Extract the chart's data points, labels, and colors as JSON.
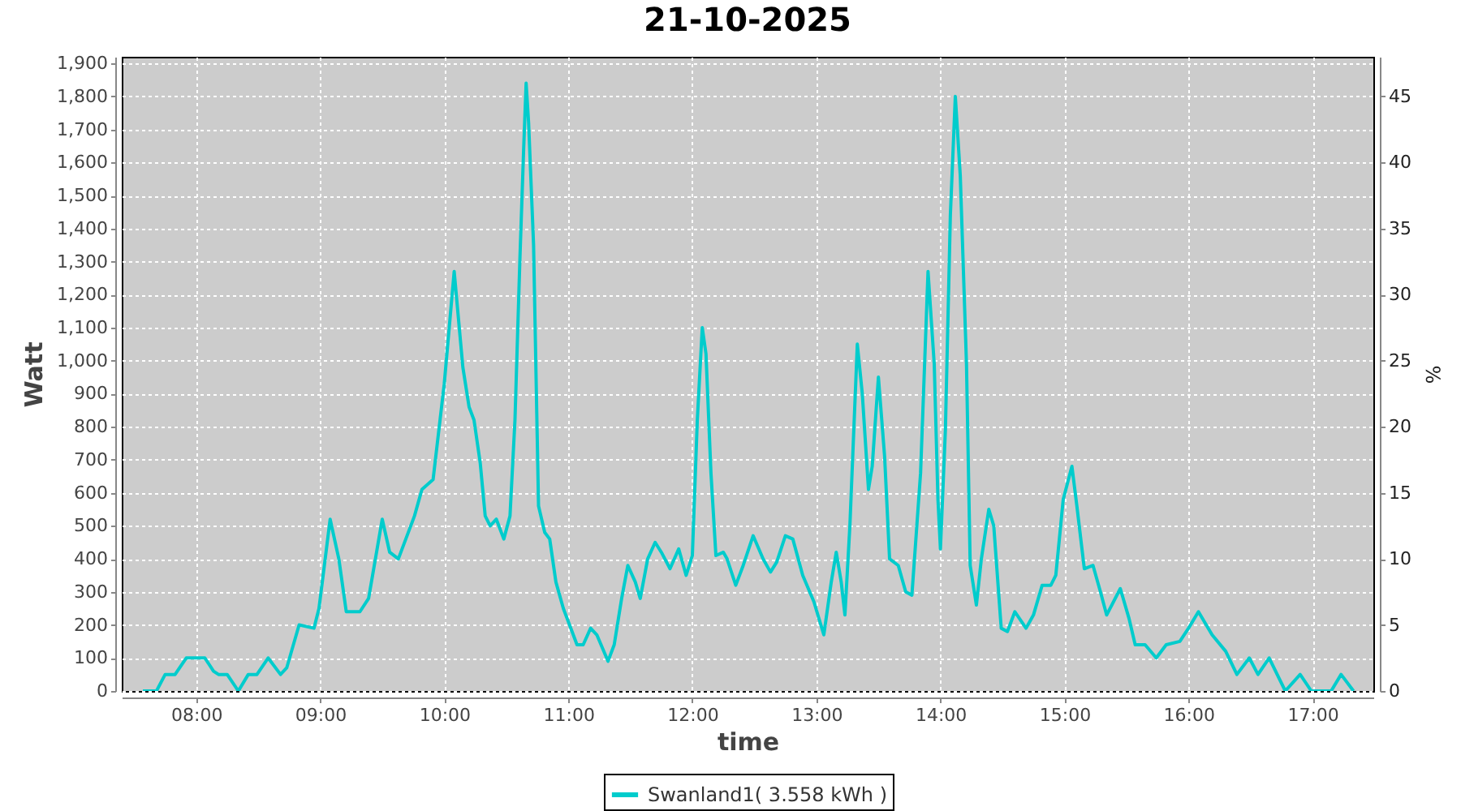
{
  "chart_data": {
    "type": "line",
    "title": "21-10-2025",
    "xlabel": "time",
    "ylabel": "Watt",
    "y2label": "%",
    "x": [
      7.57,
      7.68,
      7.75,
      7.83,
      7.92,
      8.07,
      8.14,
      8.18,
      8.25,
      8.34,
      8.42,
      8.49,
      8.58,
      8.68,
      8.73,
      8.83,
      8.95,
      8.99,
      9.08,
      9.15,
      9.21,
      9.32,
      9.39,
      9.5,
      9.56,
      9.63,
      9.76,
      9.82,
      9.91,
      10.0,
      10.08,
      10.15,
      10.2,
      10.24,
      10.29,
      10.33,
      10.37,
      10.42,
      10.48,
      10.53,
      10.57,
      10.61,
      10.64,
      10.66,
      10.68,
      10.72,
      10.76,
      10.81,
      10.85,
      10.9,
      10.96,
      11.01,
      11.07,
      11.12,
      11.18,
      11.23,
      11.32,
      11.37,
      11.43,
      11.48,
      11.54,
      11.58,
      11.64,
      11.7,
      11.75,
      11.82,
      11.89,
      11.95,
      12.0,
      12.04,
      12.08,
      12.11,
      12.15,
      12.19,
      12.25,
      12.28,
      12.35,
      12.41,
      12.49,
      12.57,
      12.63,
      12.68,
      12.75,
      12.81,
      12.89,
      12.98,
      13.06,
      13.12,
      13.16,
      13.2,
      13.23,
      13.27,
      13.33,
      13.37,
      13.42,
      13.45,
      13.5,
      13.55,
      13.59,
      13.66,
      13.72,
      13.77,
      13.84,
      13.9,
      13.95,
      13.98,
      14.0,
      14.04,
      14.08,
      14.12,
      14.16,
      14.21,
      14.24,
      14.29,
      14.33,
      14.39,
      14.43,
      14.49,
      14.54,
      14.6,
      14.69,
      14.75,
      14.82,
      14.89,
      14.93,
      14.99,
      15.06,
      15.1,
      15.16,
      15.23,
      15.29,
      15.34,
      15.45,
      15.52,
      15.57,
      15.65,
      15.74,
      15.82,
      15.93,
      16.0,
      16.08,
      16.19,
      16.3,
      16.39,
      16.49,
      16.56,
      16.65,
      16.78,
      16.9,
      16.99,
      17.15,
      17.23,
      17.33
    ],
    "series": [
      {
        "name": "Swanland1( 3.558 kWh )",
        "color": "#00cccc",
        "values": [
          0,
          0,
          50,
          50,
          100,
          100,
          60,
          50,
          50,
          0,
          50,
          50,
          100,
          50,
          70,
          200,
          190,
          250,
          520,
          400,
          240,
          240,
          280,
          520,
          420,
          400,
          530,
          610,
          640,
          930,
          1270,
          980,
          860,
          820,
          690,
          530,
          500,
          520,
          460,
          530,
          820,
          1310,
          1640,
          1840,
          1720,
          1350,
          560,
          480,
          460,
          330,
          250,
          200,
          140,
          140,
          190,
          170,
          90,
          140,
          280,
          380,
          330,
          280,
          400,
          450,
          420,
          370,
          430,
          350,
          410,
          820,
          1100,
          1020,
          660,
          410,
          420,
          400,
          320,
          380,
          470,
          400,
          360,
          390,
          470,
          460,
          350,
          270,
          170,
          330,
          420,
          330,
          230,
          500,
          1050,
          900,
          610,
          680,
          950,
          710,
          400,
          380,
          300,
          290,
          660,
          1270,
          990,
          580,
          430,
          790,
          1440,
          1800,
          1560,
          990,
          380,
          260,
          400,
          550,
          500,
          190,
          180,
          240,
          190,
          230,
          320,
          320,
          350,
          580,
          680,
          560,
          370,
          380,
          300,
          230,
          310,
          220,
          140,
          140,
          100,
          140,
          150,
          190,
          240,
          170,
          120,
          50,
          100,
          50,
          100,
          0,
          50,
          0,
          0,
          50,
          0
        ]
      }
    ],
    "xlim": [
      7.4,
      17.49
    ],
    "xticks": [
      {
        "value": 8,
        "label": "08:00"
      },
      {
        "value": 9,
        "label": "09:00"
      },
      {
        "value": 10,
        "label": "10:00"
      },
      {
        "value": 11,
        "label": "11:00"
      },
      {
        "value": 12,
        "label": "12:00"
      },
      {
        "value": 13,
        "label": "13:00"
      },
      {
        "value": 14,
        "label": "14:00"
      },
      {
        "value": 15,
        "label": "15:00"
      },
      {
        "value": 16,
        "label": "16:00"
      },
      {
        "value": 17,
        "label": "17:00"
      }
    ],
    "ylim": [
      0,
      1920
    ],
    "yticks": [
      0,
      100,
      200,
      300,
      400,
      500,
      600,
      700,
      800,
      900,
      {
        "value": 1000,
        "label": "1,000"
      },
      {
        "value": 1100,
        "label": "1,100"
      },
      {
        "value": 1200,
        "label": "1,200"
      },
      {
        "value": 1300,
        "label": "1,300"
      },
      {
        "value": 1400,
        "label": "1,400"
      },
      {
        "value": 1500,
        "label": "1,500"
      },
      {
        "value": 1600,
        "label": "1,600"
      },
      {
        "value": 1700,
        "label": "1,700"
      },
      {
        "value": 1800,
        "label": "1,800"
      },
      {
        "value": 1900,
        "label": "1,900"
      }
    ],
    "y2lim": [
      0,
      48
    ],
    "y2ticks": [
      0,
      5,
      10,
      15,
      20,
      25,
      30,
      35,
      40,
      45
    ],
    "grid": true,
    "legend": "bottom"
  }
}
